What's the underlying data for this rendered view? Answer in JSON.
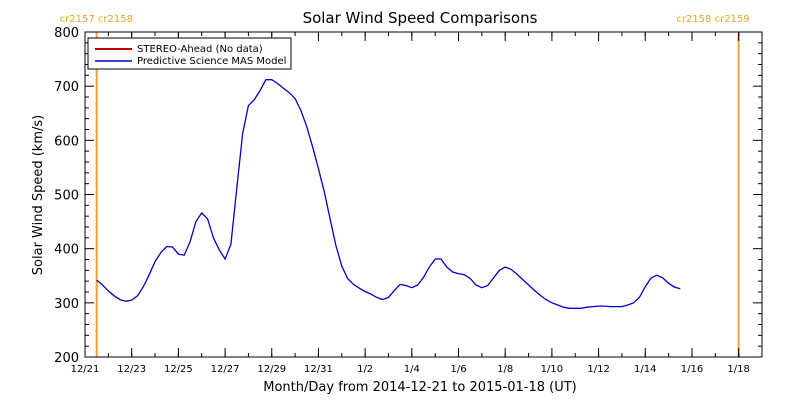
{
  "chart_data": {
    "type": "line",
    "title": "Solar Wind Speed Comparisons",
    "xlabel": "Month/Day from 2014-12-21 to 2015-01-18 (UT)",
    "ylabel": "Solar Wind Speed (km/s)",
    "xlim": [
      "2014-12-21",
      "2015-01-19"
    ],
    "ylim": [
      200,
      800
    ],
    "yticks": [
      200,
      300,
      400,
      500,
      600,
      700,
      800
    ],
    "xticks": [
      {
        "date": "2014-12-21",
        "label": "12/21"
      },
      {
        "date": "2014-12-23",
        "label": "12/23"
      },
      {
        "date": "2014-12-25",
        "label": "12/25"
      },
      {
        "date": "2014-12-27",
        "label": "12/27"
      },
      {
        "date": "2014-12-29",
        "label": "12/29"
      },
      {
        "date": "2014-12-31",
        "label": "12/31"
      },
      {
        "date": "2015-01-02",
        "label": "1/2"
      },
      {
        "date": "2015-01-04",
        "label": "1/4"
      },
      {
        "date": "2015-01-06",
        "label": "1/6"
      },
      {
        "date": "2015-01-08",
        "label": "1/8"
      },
      {
        "date": "2015-01-10",
        "label": "1/10"
      },
      {
        "date": "2015-01-12",
        "label": "1/12"
      },
      {
        "date": "2015-01-14",
        "label": "1/14"
      },
      {
        "date": "2015-01-16",
        "label": "1/16"
      },
      {
        "date": "2015-01-18",
        "label": "1/18"
      }
    ],
    "grid": false,
    "legend_position": "top-left",
    "series": [
      {
        "name": "STEREO-Ahead (No data)",
        "color": "#c00000",
        "points": []
      },
      {
        "name": "Predictive Science MAS Model",
        "color": "#0000cc",
        "points": [
          [
            "2014-12-21T12:00",
            342
          ],
          [
            "2014-12-21T18:00",
            333
          ],
          [
            "2014-12-22T00:00",
            322
          ],
          [
            "2014-12-22T06:00",
            313
          ],
          [
            "2014-12-22T12:00",
            306
          ],
          [
            "2014-12-22T18:00",
            303
          ],
          [
            "2014-12-23T00:00",
            305
          ],
          [
            "2014-12-23T06:00",
            313
          ],
          [
            "2014-12-23T12:00",
            330
          ],
          [
            "2014-12-23T18:00",
            352
          ],
          [
            "2014-12-24T00:00",
            376
          ],
          [
            "2014-12-24T06:00",
            393
          ],
          [
            "2014-12-24T12:00",
            404
          ],
          [
            "2014-12-24T18:00",
            403
          ],
          [
            "2014-12-25T00:00",
            390
          ],
          [
            "2014-12-25T06:00",
            388
          ],
          [
            "2014-12-25T12:00",
            413
          ],
          [
            "2014-12-25T18:00",
            450
          ],
          [
            "2014-12-26T00:00",
            466
          ],
          [
            "2014-12-26T06:00",
            455
          ],
          [
            "2014-12-26T12:00",
            420
          ],
          [
            "2014-12-26T18:00",
            398
          ],
          [
            "2014-12-27T00:00",
            381
          ],
          [
            "2014-12-27T06:00",
            408
          ],
          [
            "2014-12-27T12:00",
            510
          ],
          [
            "2014-12-27T18:00",
            612
          ],
          [
            "2014-12-28T00:00",
            664
          ],
          [
            "2014-12-28T06:00",
            675
          ],
          [
            "2014-12-28T12:00",
            692
          ],
          [
            "2014-12-28T18:00",
            712
          ],
          [
            "2014-12-29T00:00",
            712
          ],
          [
            "2014-12-29T06:00",
            705
          ],
          [
            "2014-12-29T12:00",
            696
          ],
          [
            "2014-12-29T18:00",
            688
          ],
          [
            "2014-12-30T00:00",
            677
          ],
          [
            "2014-12-30T06:00",
            655
          ],
          [
            "2014-12-30T12:00",
            625
          ],
          [
            "2014-12-30T18:00",
            588
          ],
          [
            "2014-12-31T00:00",
            548
          ],
          [
            "2014-12-31T06:00",
            505
          ],
          [
            "2014-12-31T12:00",
            455
          ],
          [
            "2014-12-31T18:00",
            405
          ],
          [
            "2015-01-01T00:00",
            368
          ],
          [
            "2015-01-01T06:00",
            345
          ],
          [
            "2015-01-01T12:00",
            334
          ],
          [
            "2015-01-01T18:00",
            327
          ],
          [
            "2015-01-02T00:00",
            321
          ],
          [
            "2015-01-02T06:00",
            316
          ],
          [
            "2015-01-02T12:00",
            310
          ],
          [
            "2015-01-02T18:00",
            306
          ],
          [
            "2015-01-03T00:00",
            310
          ],
          [
            "2015-01-03T06:00",
            323
          ],
          [
            "2015-01-03T12:00",
            334
          ],
          [
            "2015-01-03T18:00",
            332
          ],
          [
            "2015-01-04T00:00",
            328
          ],
          [
            "2015-01-04T06:00",
            333
          ],
          [
            "2015-01-04T12:00",
            347
          ],
          [
            "2015-01-04T18:00",
            366
          ],
          [
            "2015-01-05T00:00",
            381
          ],
          [
            "2015-01-05T06:00",
            381
          ],
          [
            "2015-01-05T12:00",
            366
          ],
          [
            "2015-01-05T18:00",
            357
          ],
          [
            "2015-01-06T00:00",
            354
          ],
          [
            "2015-01-06T06:00",
            352
          ],
          [
            "2015-01-06T12:00",
            345
          ],
          [
            "2015-01-06T18:00",
            333
          ],
          [
            "2015-01-07T00:00",
            328
          ],
          [
            "2015-01-07T06:00",
            332
          ],
          [
            "2015-01-07T12:00",
            346
          ],
          [
            "2015-01-07T18:00",
            360
          ],
          [
            "2015-01-08T00:00",
            366
          ],
          [
            "2015-01-08T06:00",
            362
          ],
          [
            "2015-01-08T12:00",
            353
          ],
          [
            "2015-01-08T18:00",
            343
          ],
          [
            "2015-01-09T00:00",
            333
          ],
          [
            "2015-01-09T06:00",
            323
          ],
          [
            "2015-01-09T12:00",
            314
          ],
          [
            "2015-01-09T18:00",
            306
          ],
          [
            "2015-01-10T00:00",
            300
          ],
          [
            "2015-01-10T06:00",
            296
          ],
          [
            "2015-01-10T12:00",
            292
          ],
          [
            "2015-01-10T18:00",
            290
          ],
          [
            "2015-01-11T00:00",
            290
          ],
          [
            "2015-01-11T06:00",
            290
          ],
          [
            "2015-01-11T12:00",
            292
          ],
          [
            "2015-01-11T18:00",
            293
          ],
          [
            "2015-01-12T00:00",
            294
          ],
          [
            "2015-01-12T06:00",
            294
          ],
          [
            "2015-01-12T12:00",
            293
          ],
          [
            "2015-01-12T18:00",
            293
          ],
          [
            "2015-01-13T00:00",
            293
          ],
          [
            "2015-01-13T06:00",
            296
          ],
          [
            "2015-01-13T12:00",
            300
          ],
          [
            "2015-01-13T18:00",
            310
          ],
          [
            "2015-01-14T00:00",
            330
          ],
          [
            "2015-01-14T06:00",
            346
          ],
          [
            "2015-01-14T12:00",
            351
          ],
          [
            "2015-01-14T18:00",
            346
          ],
          [
            "2015-01-15T00:00",
            336
          ],
          [
            "2015-01-15T06:00",
            329
          ],
          [
            "2015-01-15T12:00",
            326
          ]
        ]
      }
    ],
    "carrington_markers": [
      {
        "date": "2014-12-21T12:00",
        "labels": [
          "cr2157",
          "cr2158"
        ],
        "align": "left"
      },
      {
        "date": "2015-01-18T00:00",
        "labels": [
          "cr2158",
          "cr2159"
        ],
        "align": "right"
      }
    ],
    "marker_color": "#f0a030"
  }
}
